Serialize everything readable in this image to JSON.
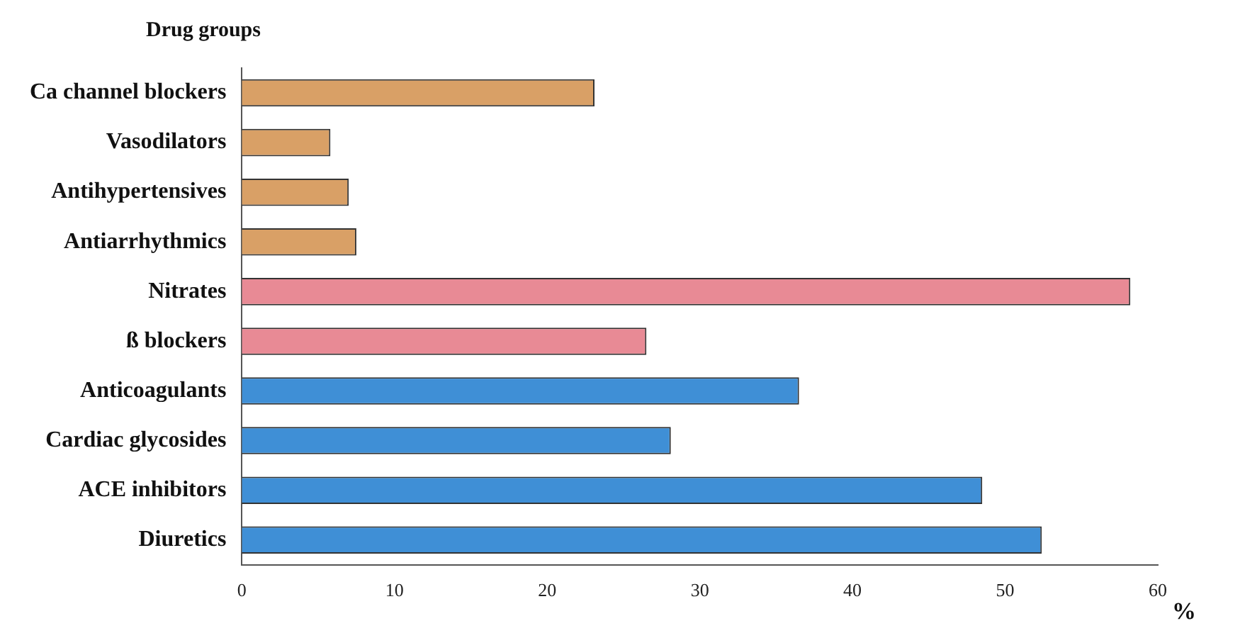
{
  "chart_data": {
    "type": "bar",
    "orientation": "horizontal",
    "ylabel": "Drug groups",
    "xlabel": "%",
    "categories": [
      "Ca channel blockers",
      "Vasodilators",
      "Antihypertensives",
      "Antiarrhythmics",
      "Nitrates",
      "ß blockers",
      "Anticoagulants",
      "Cardiac glycosides",
      "ACE inhibitors",
      "Diuretics"
    ],
    "values": [
      23.1,
      5.8,
      7.0,
      7.5,
      58.2,
      26.5,
      36.5,
      28.1,
      48.5,
      52.4
    ],
    "colors": [
      "#d9a066",
      "#d9a066",
      "#d9a066",
      "#d9a066",
      "#e88a95",
      "#e88a95",
      "#3f8fd6",
      "#3f8fd6",
      "#3f8fd6",
      "#3f8fd6"
    ],
    "xlim": [
      0,
      60
    ],
    "xticks": [
      0,
      10,
      20,
      30,
      40,
      50,
      60
    ],
    "grid": false,
    "legend": false
  }
}
